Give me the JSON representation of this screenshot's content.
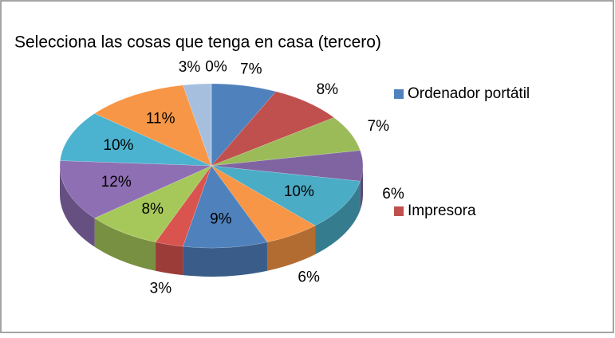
{
  "chart_data": {
    "type": "pie3d",
    "title": "Selecciona las cosas que tenga en casa (tercero)",
    "categories": [
      "Ordenador portátil",
      "Impresora",
      null,
      null,
      null,
      null,
      null,
      null,
      null,
      null,
      null,
      null,
      null,
      null
    ],
    "values": [
      7,
      8,
      7,
      6,
      10,
      6,
      9,
      3,
      8,
      12,
      10,
      11,
      3,
      0
    ],
    "value_labels": [
      "7%",
      "8%",
      "7%",
      "6%",
      "10%",
      "6%",
      "9%",
      "3%",
      "8%",
      "12%",
      "10%",
      "11%",
      "3%",
      "0%"
    ],
    "colors": [
      "#4f81bd",
      "#c0504d",
      "#9bbb59",
      "#8064a2",
      "#4bacc6",
      "#f79646",
      "#4f81bd",
      "#d9534f",
      "#a6c85a",
      "#8e6fb3",
      "#4bb3cf",
      "#f79646",
      "#a7bfdf",
      "#e08b87"
    ],
    "legend": "right"
  }
}
